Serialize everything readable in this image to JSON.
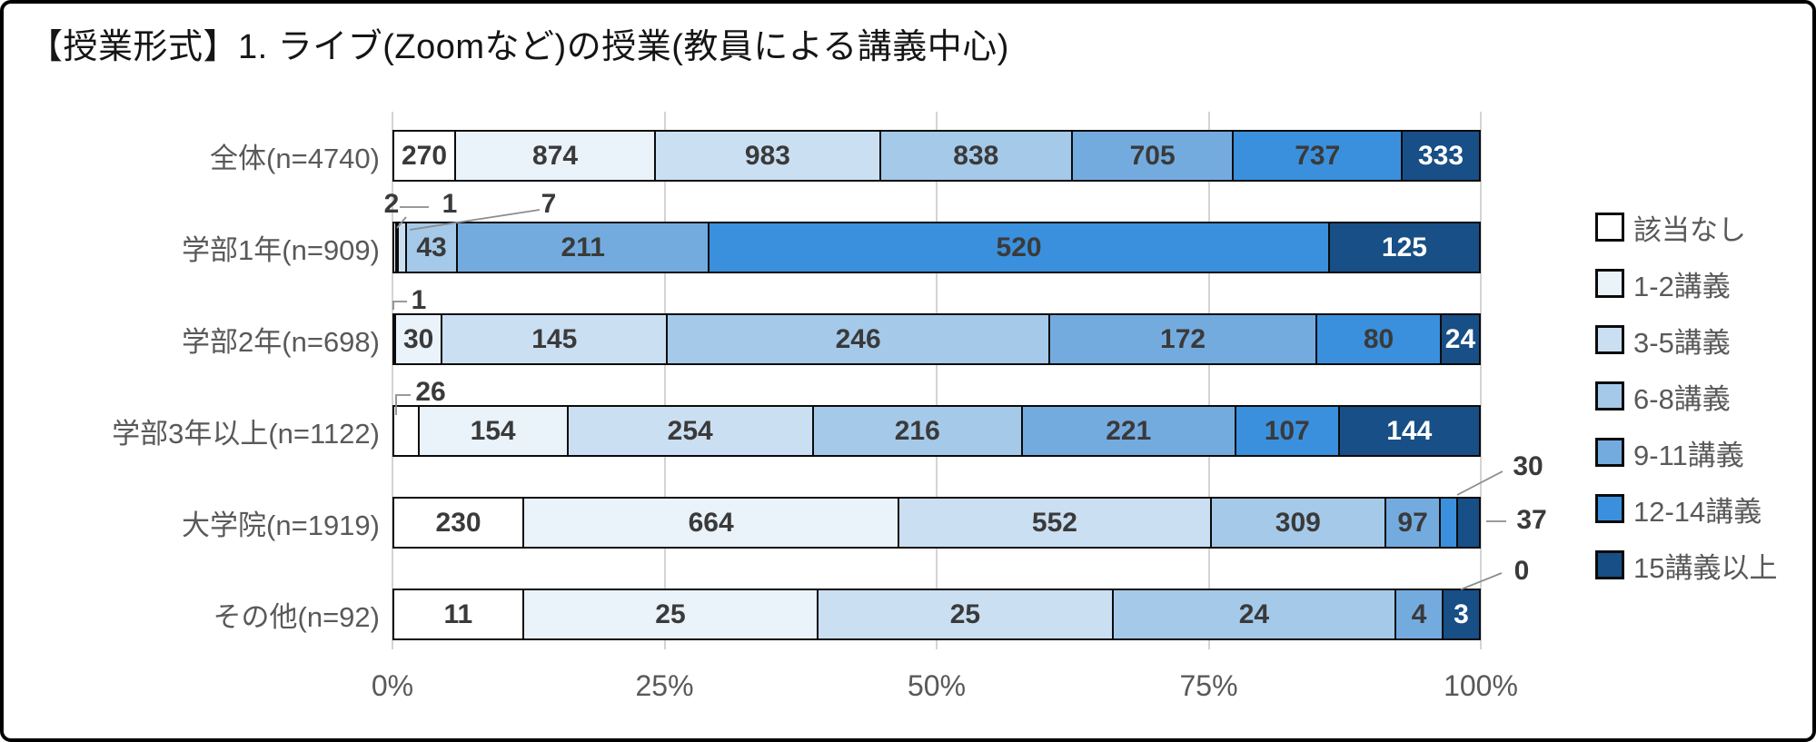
{
  "title": "【授業形式】1. ライブ(Zoomなど)の授業(教員による講義中心)",
  "colors": {
    "frame_border": "#000000",
    "bar_outline": "#0b0b0b",
    "label_dark": "#3a3a3a",
    "label_light": "#ffffff",
    "axis_text": "#595959",
    "category_text": "#595959",
    "legend_text": "#595959",
    "gridline": "#d4d4d4",
    "leader_line": "#8c8c8c",
    "title_text": "#151515"
  },
  "chart_data": {
    "type": "bar",
    "orientation": "horizontal",
    "stacked": "percent",
    "title": "【授業形式】1. ライブ(Zoomなど)の授業(教員による講義中心)",
    "categories": [
      "全体(n=4740)",
      "学部1年(n=909)",
      "学部2年(n=698)",
      "学部3年以上(n=1122)",
      "大学院(n=1919)",
      "その他(n=92)"
    ],
    "totals": [
      4740,
      909,
      698,
      1122,
      1919,
      92
    ],
    "legend_position": "right",
    "series": [
      {
        "name": "該当なし",
        "color": "#ffffff",
        "values": [
          270,
          2,
          1,
          26,
          230,
          11
        ]
      },
      {
        "name": "1-2講義",
        "color": "#eaf2fa",
        "values": [
          874,
          1,
          30,
          154,
          664,
          25
        ]
      },
      {
        "name": "3-5講義",
        "color": "#cbdff2",
        "values": [
          983,
          7,
          145,
          254,
          552,
          25
        ]
      },
      {
        "name": "6-8講義",
        "color": "#a5c9e9",
        "values": [
          838,
          43,
          246,
          216,
          309,
          24
        ]
      },
      {
        "name": "9-11講義",
        "color": "#74abdf",
        "values": [
          705,
          211,
          172,
          221,
          97,
          4
        ]
      },
      {
        "name": "12-14講義",
        "color": "#3a90dc",
        "values": [
          737,
          520,
          80,
          107,
          30,
          0
        ]
      },
      {
        "name": "15講義以上",
        "color": "#174f86",
        "values": [
          333,
          125,
          24,
          144,
          37,
          3
        ]
      }
    ],
    "x_axis": {
      "ticks": [
        "0%",
        "25%",
        "50%",
        "75%",
        "100%"
      ],
      "range_percent": [
        0,
        100
      ],
      "gridlines": true
    }
  }
}
